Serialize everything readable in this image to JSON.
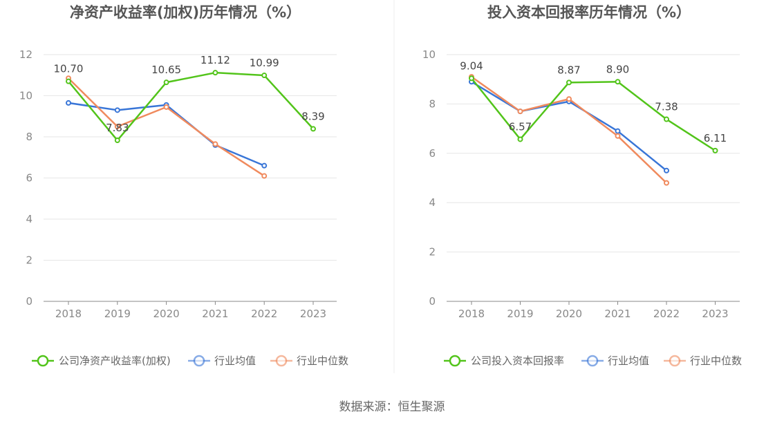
{
  "colors": {
    "company": "#52c41a",
    "avg": "#3875d7",
    "median": "#f08a5d",
    "grid": "#e6e6e6",
    "axis": "#888888"
  },
  "source_text": "数据来源：恒生聚源",
  "chart_data": [
    {
      "type": "line",
      "title": "净资产收益率(加权)历年情况（%）",
      "categories": [
        "2018",
        "2019",
        "2020",
        "2021",
        "2022",
        "2023"
      ],
      "ylim": [
        0,
        12
      ],
      "yticks": [
        0,
        2,
        4,
        6,
        8,
        10,
        12
      ],
      "series": [
        {
          "name": "公司净资产收益率(加权)",
          "role": "company",
          "values": [
            10.7,
            7.83,
            10.65,
            11.12,
            10.99,
            8.39
          ],
          "labels": [
            "10.70",
            "7.83",
            "10.65",
            "11.12",
            "10.99",
            "8.39"
          ]
        },
        {
          "name": "行业均值",
          "role": "avg",
          "values": [
            9.65,
            9.3,
            9.55,
            7.6,
            6.6,
            null
          ]
        },
        {
          "name": "行业中位数",
          "role": "median",
          "values": [
            10.85,
            8.5,
            9.45,
            7.65,
            6.1,
            null
          ]
        }
      ]
    },
    {
      "type": "line",
      "title": "投入资本回报率历年情况（%）",
      "categories": [
        "2018",
        "2019",
        "2020",
        "2021",
        "2022",
        "2023"
      ],
      "ylim": [
        0,
        10
      ],
      "yticks": [
        0,
        2,
        4,
        6,
        8,
        10
      ],
      "series": [
        {
          "name": "公司投入资本回报率",
          "role": "company",
          "values": [
            9.04,
            6.57,
            8.87,
            8.9,
            7.38,
            6.11
          ],
          "labels": [
            "9.04",
            "6.57",
            "8.87",
            "8.90",
            "7.38",
            "6.11"
          ]
        },
        {
          "name": "行业均值",
          "role": "avg",
          "values": [
            8.9,
            7.7,
            8.1,
            6.9,
            5.3,
            null
          ]
        },
        {
          "name": "行业中位数",
          "role": "median",
          "values": [
            9.1,
            7.7,
            8.2,
            6.7,
            4.8,
            null
          ]
        }
      ]
    }
  ]
}
